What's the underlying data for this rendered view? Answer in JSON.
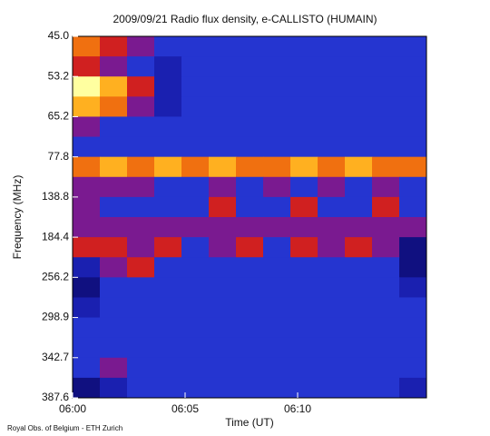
{
  "chart_data": {
    "type": "spectrogram",
    "title": "2009/09/21  Radio flux density, e-CALLISTO (HUMAIN)",
    "xlabel": "Time (UT)",
    "ylabel": "Frequency (MHz)",
    "footer": "Royal Obs. of Belgium - ETH Zurich",
    "xticks": [
      "06:00",
      "06:05",
      "06:10"
    ],
    "yticks": [
      {
        "value": 45.0,
        "label": "45.0"
      },
      {
        "value": 53.2,
        "label": "53.2"
      },
      {
        "value": 65.2,
        "label": "65.2"
      },
      {
        "value": 77.8,
        "label": "77.8"
      },
      {
        "value": 138.8,
        "label": "138.8"
      },
      {
        "value": 184.4,
        "label": "184.4"
      },
      {
        "value": 256.2,
        "label": "256.2"
      },
      {
        "value": 298.9,
        "label": "298.9"
      },
      {
        "value": 342.7,
        "label": "342.7"
      },
      {
        "value": 387.6,
        "label": "387.6"
      }
    ],
    "colormap": [
      "#000000",
      "#000040",
      "#101080",
      "#1a20b0",
      "#2535d0",
      "#7a1a90",
      "#d02020",
      "#f07010",
      "#ffb020",
      "#ffffa0"
    ],
    "z": [
      [
        7,
        6,
        5,
        4,
        4,
        4,
        4,
        4,
        4,
        4,
        4,
        4,
        4
      ],
      [
        6,
        5,
        4,
        3,
        4,
        4,
        4,
        4,
        4,
        4,
        4,
        4,
        4
      ],
      [
        9,
        8,
        6,
        3,
        4,
        4,
        4,
        4,
        4,
        4,
        4,
        4,
        4
      ],
      [
        8,
        7,
        5,
        3,
        4,
        4,
        4,
        4,
        4,
        4,
        4,
        4,
        4
      ],
      [
        5,
        4,
        4,
        4,
        4,
        4,
        4,
        4,
        4,
        4,
        4,
        4,
        4
      ],
      [
        4,
        4,
        4,
        4,
        4,
        4,
        4,
        4,
        4,
        4,
        4,
        4,
        4
      ],
      [
        7,
        8,
        7,
        8,
        7,
        8,
        7,
        7,
        8,
        7,
        8,
        7,
        7
      ],
      [
        5,
        5,
        5,
        4,
        4,
        5,
        4,
        5,
        4,
        5,
        4,
        5,
        4
      ],
      [
        5,
        4,
        4,
        4,
        4,
        6,
        4,
        4,
        6,
        4,
        4,
        6,
        4
      ],
      [
        5,
        5,
        5,
        5,
        5,
        5,
        5,
        5,
        5,
        5,
        5,
        5,
        5
      ],
      [
        6,
        6,
        5,
        6,
        4,
        5,
        6,
        4,
        6,
        5,
        6,
        5,
        2
      ],
      [
        3,
        5,
        6,
        4,
        4,
        4,
        4,
        4,
        4,
        4,
        4,
        4,
        2
      ],
      [
        2,
        4,
        4,
        4,
        4,
        4,
        4,
        4,
        4,
        4,
        4,
        4,
        3
      ],
      [
        3,
        4,
        4,
        4,
        4,
        4,
        4,
        4,
        4,
        4,
        4,
        4,
        4
      ],
      [
        4,
        4,
        4,
        4,
        4,
        4,
        4,
        4,
        4,
        4,
        4,
        4,
        4
      ],
      [
        4,
        4,
        4,
        4,
        4,
        4,
        4,
        4,
        4,
        4,
        4,
        4,
        4
      ],
      [
        4,
        5,
        4,
        4,
        4,
        4,
        4,
        4,
        4,
        4,
        4,
        4,
        4
      ],
      [
        2,
        3,
        4,
        4,
        4,
        4,
        4,
        4,
        4,
        4,
        4,
        4,
        3
      ]
    ]
  }
}
